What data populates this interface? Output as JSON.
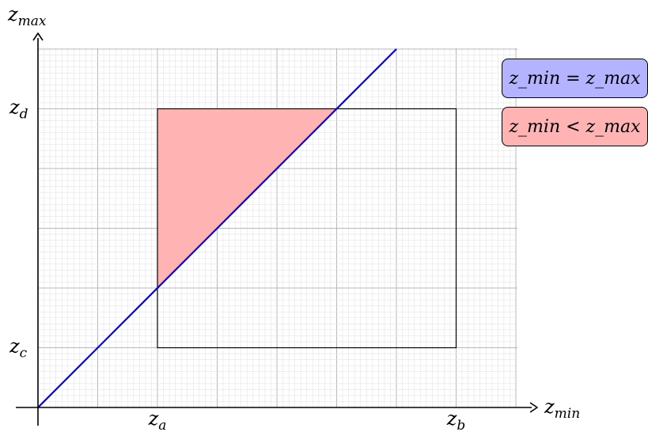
{
  "axes": {
    "x_label": "z_min",
    "y_label": "z_max",
    "x_ticks": [
      {
        "name": "z_a",
        "value": 2
      },
      {
        "name": "z_b",
        "value": 7
      }
    ],
    "y_ticks": [
      {
        "name": "z_c",
        "value": 1
      },
      {
        "name": "z_d",
        "value": 5
      }
    ],
    "range_x": [
      0,
      8
    ],
    "range_y": [
      0,
      6
    ]
  },
  "rectangle": {
    "x": [
      2,
      7
    ],
    "y": [
      1,
      5
    ]
  },
  "diagonal_line": {
    "from": [
      0,
      0
    ],
    "to": [
      6,
      6
    ],
    "color": "#0000ff"
  },
  "shaded_region": {
    "vertices": [
      [
        2,
        2
      ],
      [
        2,
        5
      ],
      [
        5,
        5
      ]
    ],
    "color": "#ffb3b3"
  },
  "legend": [
    {
      "text": "z_min = z_max",
      "color": "#b3b3ff"
    },
    {
      "text": "z_min < z_max",
      "color": "#ffb3b3"
    }
  ],
  "grid": true
}
